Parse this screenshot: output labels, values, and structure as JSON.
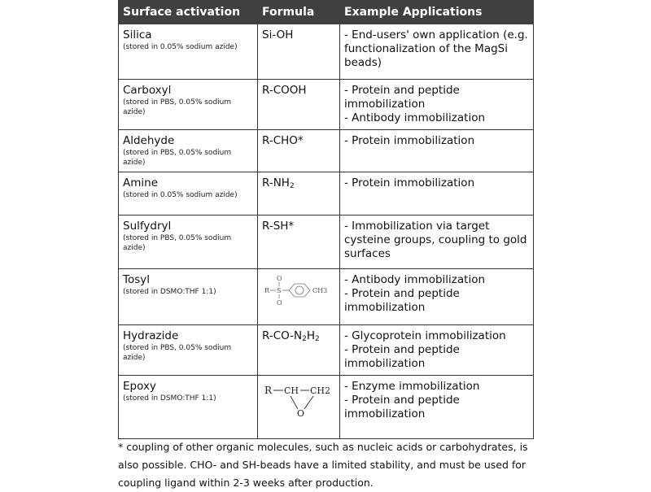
{
  "headers": {
    "activation": "Surface activation",
    "formula": "Formula",
    "applications": "Example Applications"
  },
  "rows": [
    {
      "name": "Silica",
      "note": "(stored in 0.05% sodium azide)",
      "formula": "Si-OH",
      "apps": [
        "- End-users' own application (e.g. functionalization of the MagSi beads)"
      ]
    },
    {
      "name": "Carboxyl",
      "note": "(stored in PBS,  0.05% sodium azide)",
      "formula": "R-COOH",
      "apps": [
        "- Protein and peptide immobilization",
        "- Antibody immobilization"
      ]
    },
    {
      "name": "Aldehyde",
      "note": "(stored in PBS,  0.05% sodium azide)",
      "formula": "R-CHO*",
      "apps": [
        "- Protein immobilization"
      ]
    },
    {
      "name": "Amine",
      "note": "(stored in 0.05% sodium azide)",
      "formula": "R-NH",
      "formula_sub": "2",
      "apps": [
        "- Protein immobilization"
      ]
    },
    {
      "name": "Sulfydryl",
      "note": "(stored in PBS,  0.05% sodium azide)",
      "formula": "R-SH*",
      "apps": [
        "- Immobilization via target cysteine groups, coupling to gold surfaces"
      ]
    },
    {
      "name": "Tosyl",
      "note": "(stored in DSMO:THF 1:1)",
      "formula_image": "tosyl-structure",
      "formula_labels": {
        "r": "R",
        "s": "S",
        "o": "O",
        "ch3": "CH3"
      },
      "apps": [
        "- Antibody immobilization",
        "- Protein and peptide immobilization"
      ]
    },
    {
      "name": "Hydrazide",
      "note": "(stored in PBS,  0.05% sodium azide)",
      "formula": "R-CO-N",
      "formula_parts": [
        "R-CO-N",
        "2",
        "H",
        "2"
      ],
      "apps": [
        "- Glycoprotein immobilization",
        "- Protein and peptide immobilization"
      ]
    },
    {
      "name": "Epoxy",
      "note": "(stored in DSMO:THF 1:1)",
      "formula_image": "epoxy-structure",
      "formula_labels": {
        "r": "R",
        "ch": "CH",
        "ch2": "CH2",
        "o": "O"
      },
      "apps": [
        "- Enzyme immobilization",
        "- Protein and peptide immobilization"
      ]
    }
  ],
  "footnote": "* coupling of other organic molecules, such as nucleic acids or carbohydrates, is also possible. CHO- and SH-beads have a limited stability, and must be used for coupling ligand within 2-3 weeks after production."
}
